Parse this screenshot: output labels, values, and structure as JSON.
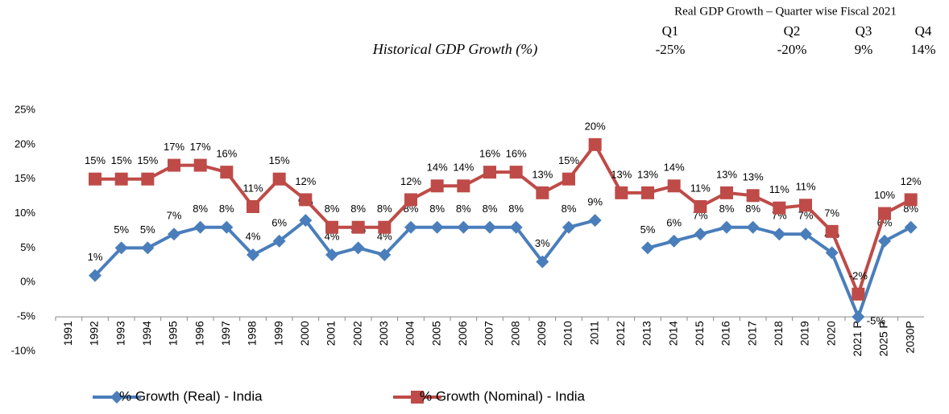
{
  "header": {
    "title": "Historical GDP Growth (%)",
    "quarters": {
      "title": "Real GDP Growth – Quarter wise Fiscal 2021",
      "labels": [
        "Q1",
        "Q2",
        "Q3",
        "Q4"
      ],
      "values": [
        "-25%",
        "-20%",
        "9%",
        "14%"
      ]
    }
  },
  "chart_data": {
    "type": "line",
    "categories": [
      "1991",
      "1992",
      "1993",
      "1994",
      "1995",
      "1996",
      "1997",
      "1998",
      "1999",
      "2000",
      "2001",
      "2002",
      "2003",
      "2004",
      "2005",
      "2006",
      "2007",
      "2008",
      "2009",
      "2010",
      "2011",
      "2012",
      "2013",
      "2014",
      "2015",
      "2016",
      "2017",
      "2018",
      "2019",
      "2020",
      "2021 P",
      "2025 P",
      "2030P"
    ],
    "series": [
      {
        "name": "% Growth (Real) - India",
        "color": "#4a7ebb",
        "marker": "diamond",
        "values": [
          null,
          1,
          5,
          5,
          7,
          8,
          8,
          4,
          6,
          9,
          4,
          5,
          4,
          8,
          8,
          8,
          8,
          8,
          3,
          8,
          9,
          null,
          5,
          6,
          7,
          8,
          8,
          7,
          7,
          4.3,
          -5,
          6,
          8
        ],
        "value_labels": [
          null,
          "1%",
          "5%",
          "5%",
          "7%",
          "8%",
          "8%",
          "4%",
          "6%",
          "9%",
          "4%",
          "5%",
          "4%",
          "8%",
          "8%",
          "8%",
          "8%",
          "8%",
          "3%",
          "8%",
          "9%",
          null,
          "5%",
          "6%",
          "7%",
          "8%",
          "8%",
          "7%",
          "7%",
          "4%",
          "-5%",
          "6%",
          "8%"
        ]
      },
      {
        "name": "% Growth (Nominal) - India",
        "color": "#be4b48",
        "marker": "square",
        "values": [
          null,
          15,
          15,
          15,
          17,
          17,
          16,
          11,
          15,
          12,
          8,
          8,
          8,
          12,
          14,
          14,
          16,
          16,
          13,
          15,
          20,
          13,
          13,
          14,
          11,
          13,
          12.6,
          10.8,
          11.2,
          7.4,
          -1.7,
          10,
          12
        ],
        "value_labels": [
          null,
          "15%",
          "15%",
          "15%",
          "17%",
          "17%",
          "16%",
          "11%",
          "15%",
          "12%",
          "8%",
          "8%",
          "8%",
          "12%",
          "14%",
          "14%",
          "16%",
          "16%",
          "13%",
          "15%",
          "20%",
          "13%",
          "13%",
          "14%",
          "11%",
          "13%",
          "13%",
          "11%",
          "11%",
          "7%",
          "-2%",
          "10%",
          "12%"
        ]
      }
    ],
    "ylim": [
      -10,
      25
    ],
    "yticks": [
      {
        "value": -10,
        "label": "-10%"
      },
      {
        "value": -5,
        "label": "-5%"
      },
      {
        "value": 0,
        "label": "0%"
      },
      {
        "value": 5,
        "label": "5%"
      },
      {
        "value": 10,
        "label": "10%"
      },
      {
        "value": 15,
        "label": "15%"
      },
      {
        "value": 20,
        "label": "20%"
      },
      {
        "value": 25,
        "label": "25%"
      }
    ],
    "xaxis_crosses": -5,
    "grid": false,
    "legend": "bottom"
  }
}
